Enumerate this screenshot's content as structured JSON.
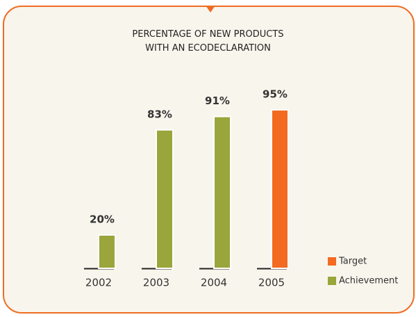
{
  "chart_data": {
    "type": "bar",
    "title": "PERCENTAGE OF NEW PRODUCTS\nWITH AN ECODECLARATION",
    "categories": [
      "2002",
      "2003",
      "2004",
      "2005"
    ],
    "series": [
      {
        "name": "Target",
        "color": "#f26b21",
        "values": [
          null,
          null,
          null,
          95
        ],
        "value_labels": [
          null,
          null,
          null,
          "95%"
        ]
      },
      {
        "name": "Achievement",
        "color": "#9aa53b",
        "values": [
          20,
          83,
          91,
          null
        ],
        "value_labels": [
          "20%",
          "83%",
          "91%",
          null
        ]
      }
    ],
    "ylim": [
      0,
      100
    ],
    "legend": "bottom-right"
  }
}
